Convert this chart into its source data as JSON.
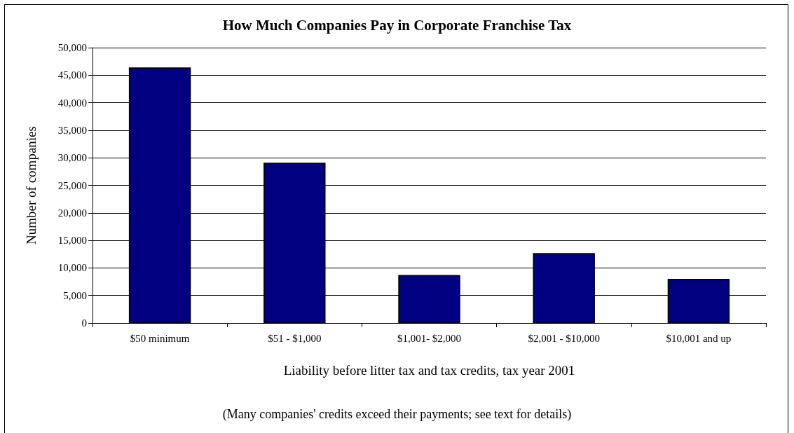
{
  "chart_data": {
    "type": "bar",
    "title": "How Much Companies Pay in Corporate Franchise Tax",
    "xlabel": "Liability before litter tax and tax credits, tax year 2001",
    "ylabel": "Number of companies",
    "annotations": [
      "(Many companies' credits exceed their payments; see text for details)"
    ],
    "categories": [
      "$50 minimum",
      "$51 - $1,000",
      "$1,001- $2,000",
      "$2,001 - $10,000",
      "$10,001 and up"
    ],
    "values": [
      46400,
      29100,
      8700,
      12700,
      8000
    ],
    "color": "#000080",
    "ylim": [
      0,
      50000
    ],
    "yticks": [
      0,
      {
        "value": 5000,
        "label": "5,000"
      },
      {
        "value": 10000,
        "label": "10,000"
      },
      {
        "value": 15000,
        "label": "15,000"
      },
      {
        "value": 20000,
        "label": "20,000"
      },
      {
        "value": 25000,
        "label": "25,000"
      },
      {
        "value": 30000,
        "label": "30,000"
      },
      {
        "value": 35000,
        "label": "35,000"
      },
      {
        "value": 40000,
        "label": "40,000"
      },
      {
        "value": 45000,
        "label": "45,000"
      },
      {
        "value": 50000,
        "label": "50,000"
      }
    ],
    "grid": "y"
  }
}
